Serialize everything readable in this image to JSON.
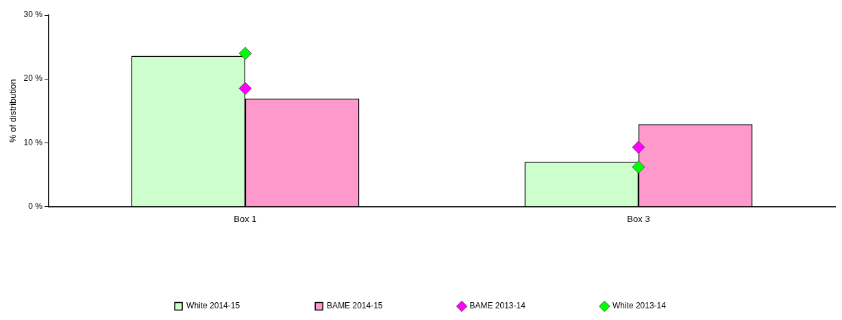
{
  "chart_data": {
    "type": "bar",
    "ylabel": "% of distribution",
    "categories": [
      "Box 1",
      "Box 3"
    ],
    "series": [
      {
        "name": "White 2014-15",
        "color": "#ccffcc",
        "values": [
          23.6,
          7.0
        ]
      },
      {
        "name": "BAME 2014-15",
        "color": "#ff99cc",
        "values": [
          16.9,
          12.9
        ]
      },
      {
        "name": "BAME 2013-14",
        "type": "scatter",
        "marker": "diamond",
        "color": "#ff00ff",
        "values": [
          18.5,
          9.3
        ]
      },
      {
        "name": "White 2013-14",
        "type": "scatter",
        "marker": "diamond",
        "color": "#00ff00",
        "values": [
          24.0,
          6.2
        ]
      }
    ],
    "ylim": [
      0,
      30
    ],
    "yticks": [
      {
        "value": 0,
        "label": "0 %"
      },
      {
        "value": 10,
        "label": "10 %"
      },
      {
        "value": 20,
        "label": "20 %"
      },
      {
        "value": 30,
        "label": "30 %"
      }
    ],
    "grid": false,
    "legend": "bottom"
  }
}
